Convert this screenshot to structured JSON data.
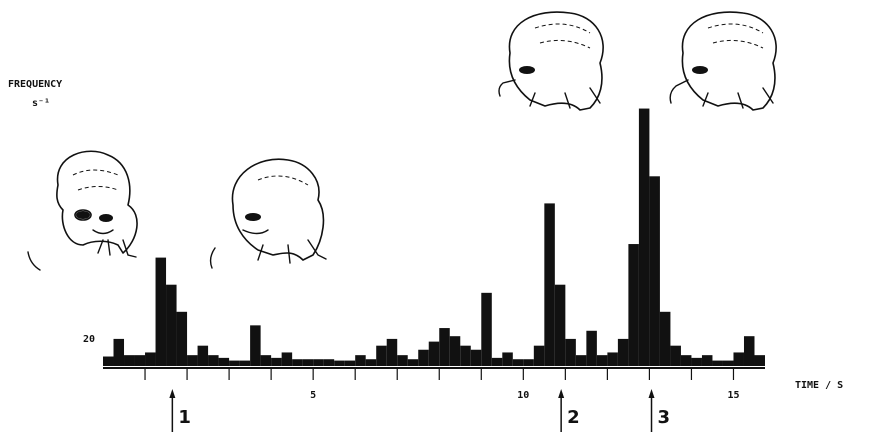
{
  "chart_data": {
    "type": "histogram",
    "y_label": "FREQUENCY",
    "y_unit": "s⁻¹",
    "x_label": "TIME / S",
    "color": "#111111",
    "bins": [
      0,
      0.25,
      0.5,
      0.75,
      1,
      1.25,
      1.5,
      1.75,
      2,
      2.25,
      2.5,
      2.75,
      3,
      3.25,
      3.5,
      3.75,
      4,
      4.25,
      4.5,
      4.75,
      5,
      5.25,
      5.5,
      5.75,
      6,
      6.25,
      6.5,
      6.75,
      7,
      7.25,
      7.5,
      7.75,
      8,
      8.25,
      8.5,
      8.75,
      9,
      9.25,
      9.5,
      9.75,
      10,
      10.25,
      10.5,
      10.75,
      11,
      11.25,
      11.5,
      11.75,
      12,
      12.25,
      12.5,
      12.75,
      13,
      13.25,
      13.5,
      13.75,
      14,
      14.25,
      14.5,
      14.75,
      15,
      15.25,
      15.5,
      15.75
    ],
    "values": [
      7,
      20,
      8,
      8,
      10,
      80,
      60,
      40,
      8,
      15,
      8,
      6,
      4,
      4,
      30,
      8,
      6,
      10,
      5,
      5,
      5,
      5,
      4,
      4,
      8,
      5,
      15,
      20,
      8,
      5,
      12,
      18,
      28,
      22,
      15,
      12,
      54,
      6,
      10,
      5,
      5,
      15,
      120,
      60,
      20,
      8,
      26,
      8,
      10,
      20,
      90,
      190,
      140,
      40,
      15,
      8,
      6,
      8,
      4,
      4,
      10,
      22,
      8
    ],
    "xlim": [
      0,
      15.75
    ],
    "ylim": [
      0,
      200
    ],
    "xticks": [
      5,
      10,
      15
    ],
    "xminorticks": [
      1,
      2,
      3,
      4,
      6,
      7,
      8,
      9,
      11,
      12,
      13,
      14
    ],
    "yticks": [
      20
    ],
    "annotations": [
      {
        "text": "1",
        "x": 1.65
      },
      {
        "text": "2",
        "x": 10.9
      },
      {
        "text": "3",
        "x": 13.05
      }
    ]
  }
}
